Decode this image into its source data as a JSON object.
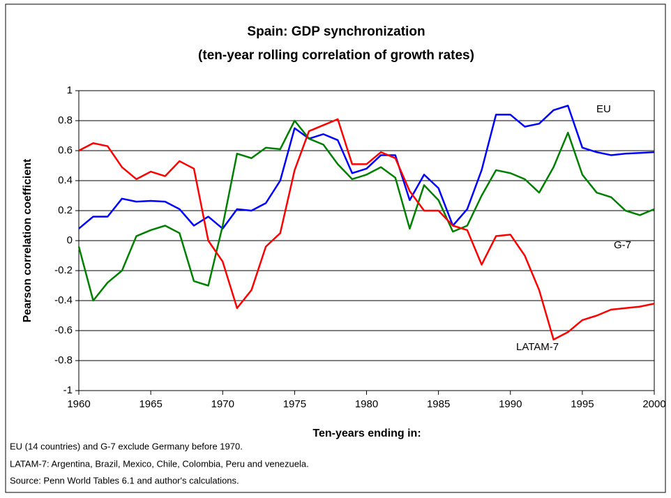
{
  "chart_data": {
    "type": "line",
    "title": [
      "Spain: GDP synchronization",
      "(ten-year rolling correlation of growth rates)"
    ],
    "y_label": "Pearson correlation coefficient",
    "x_label": "Ten-years ending in:",
    "notes": [
      "EU (14 countries) and G-7 exclude Germany before 1970.",
      "LATAM-7: Argentina, Brazil, Mexico, Chile, Colombia, Peru and venezuela.",
      "Source: Penn World Tables 6.1 and author's calculations."
    ],
    "x": [
      1960,
      1961,
      1962,
      1963,
      1964,
      1965,
      1966,
      1967,
      1968,
      1969,
      1970,
      1971,
      1972,
      1973,
      1974,
      1975,
      1976,
      1977,
      1978,
      1979,
      1980,
      1981,
      1982,
      1983,
      1984,
      1985,
      1986,
      1987,
      1988,
      1989,
      1990,
      1991,
      1992,
      1993,
      1994,
      1995,
      1996,
      1997,
      1998,
      1999,
      2000
    ],
    "xlim": [
      1960,
      2000
    ],
    "xticks": [
      1960,
      1965,
      1970,
      1975,
      1980,
      1985,
      1990,
      1995,
      2000
    ],
    "ylim": [
      -1,
      1
    ],
    "yticks": [
      -1,
      -0.8,
      -0.6,
      -0.4,
      -0.2,
      0,
      0.2,
      0.4,
      0.6,
      0.8,
      1
    ],
    "grid": true,
    "series": [
      {
        "name": "EU",
        "color": "#0000ff",
        "values": [
          0.08,
          0.16,
          0.16,
          0.28,
          0.26,
          0.265,
          0.26,
          0.21,
          0.1,
          0.16,
          0.08,
          0.21,
          0.2,
          0.25,
          0.4,
          0.75,
          0.68,
          0.71,
          0.67,
          0.45,
          0.48,
          0.57,
          0.57,
          0.27,
          0.44,
          0.35,
          0.1,
          0.21,
          0.47,
          0.84,
          0.84,
          0.76,
          0.78,
          0.87,
          0.9,
          0.62,
          0.59,
          0.57,
          0.58,
          0.585,
          0.59
        ]
      },
      {
        "name": "G-7",
        "color": "#008000",
        "values": [
          -0.04,
          -0.4,
          -0.28,
          -0.2,
          0.03,
          0.07,
          0.1,
          0.05,
          -0.27,
          -0.3,
          0.1,
          0.58,
          0.55,
          0.62,
          0.61,
          0.8,
          0.68,
          0.64,
          0.51,
          0.41,
          0.44,
          0.49,
          0.42,
          0.08,
          0.37,
          0.27,
          0.06,
          0.1,
          0.3,
          0.47,
          0.45,
          0.41,
          0.32,
          0.49,
          0.72,
          0.44,
          0.32,
          0.29,
          0.2,
          0.17,
          0.21
        ]
      },
      {
        "name": "LATAM-7",
        "color": "#ff0000",
        "values": [
          0.6,
          0.65,
          0.63,
          0.49,
          0.41,
          0.46,
          0.43,
          0.53,
          0.48,
          0.0,
          -0.14,
          -0.45,
          -0.33,
          -0.04,
          0.05,
          0.47,
          0.73,
          0.77,
          0.81,
          0.51,
          0.51,
          0.59,
          0.55,
          0.33,
          0.2,
          0.2,
          0.1,
          0.07,
          -0.16,
          0.03,
          0.04,
          -0.1,
          -0.33,
          -0.66,
          -0.61,
          -0.53,
          -0.5,
          -0.46,
          -0.45,
          -0.44,
          -0.42
        ]
      }
    ]
  }
}
